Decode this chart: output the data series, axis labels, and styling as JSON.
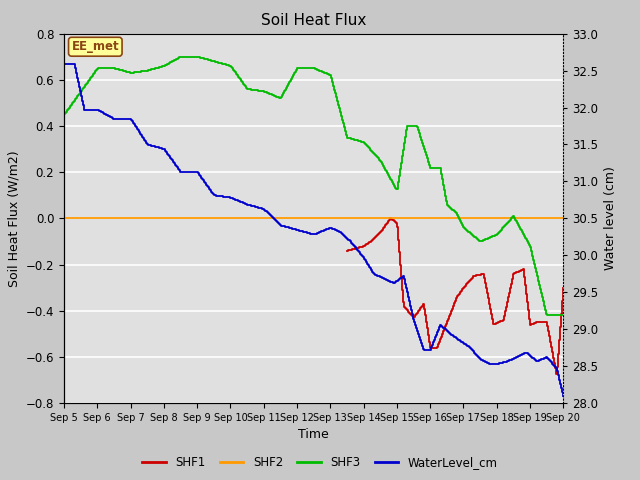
{
  "title": "Soil Heat Flux",
  "xlabel": "Time",
  "ylabel_left": "Soil Heat Flux (W/m2)",
  "ylabel_right": "Water level (cm)",
  "annotation": "EE_met",
  "ylim_left": [
    -0.8,
    0.8
  ],
  "ylim_right": [
    28.0,
    33.0
  ],
  "fig_bg_color": "#c8c8c8",
  "plot_bg_color": "#e0e0e0",
  "grid_color": "#ffffff",
  "colors": {
    "SHF1": "#cc0000",
    "SHF2": "#ff9900",
    "SHF3": "#00bb00",
    "WaterLevel_cm": "#0000cc"
  },
  "annotation_facecolor": "#ffff99",
  "annotation_edgecolor": "#8B4513",
  "annotation_textcolor": "#8B4513",
  "x_tick_labels": [
    "Sep 5",
    "Sep 6",
    "Sep 7",
    "Sep 8",
    "Sep 9",
    "Sep 10",
    "Sep 11",
    "Sep 12",
    "Sep 13",
    "Sep 14",
    "Sep 15",
    "Sep 16",
    "Sep 17",
    "Sep 18",
    "Sep 19",
    "Sep 20"
  ],
  "yticks_left": [
    -0.8,
    -0.6,
    -0.4,
    -0.2,
    0.0,
    0.2,
    0.4,
    0.6,
    0.8
  ],
  "yticks_right": [
    28.0,
    28.5,
    29.0,
    29.5,
    30.0,
    30.5,
    31.0,
    31.5,
    32.0,
    32.5,
    33.0
  ]
}
